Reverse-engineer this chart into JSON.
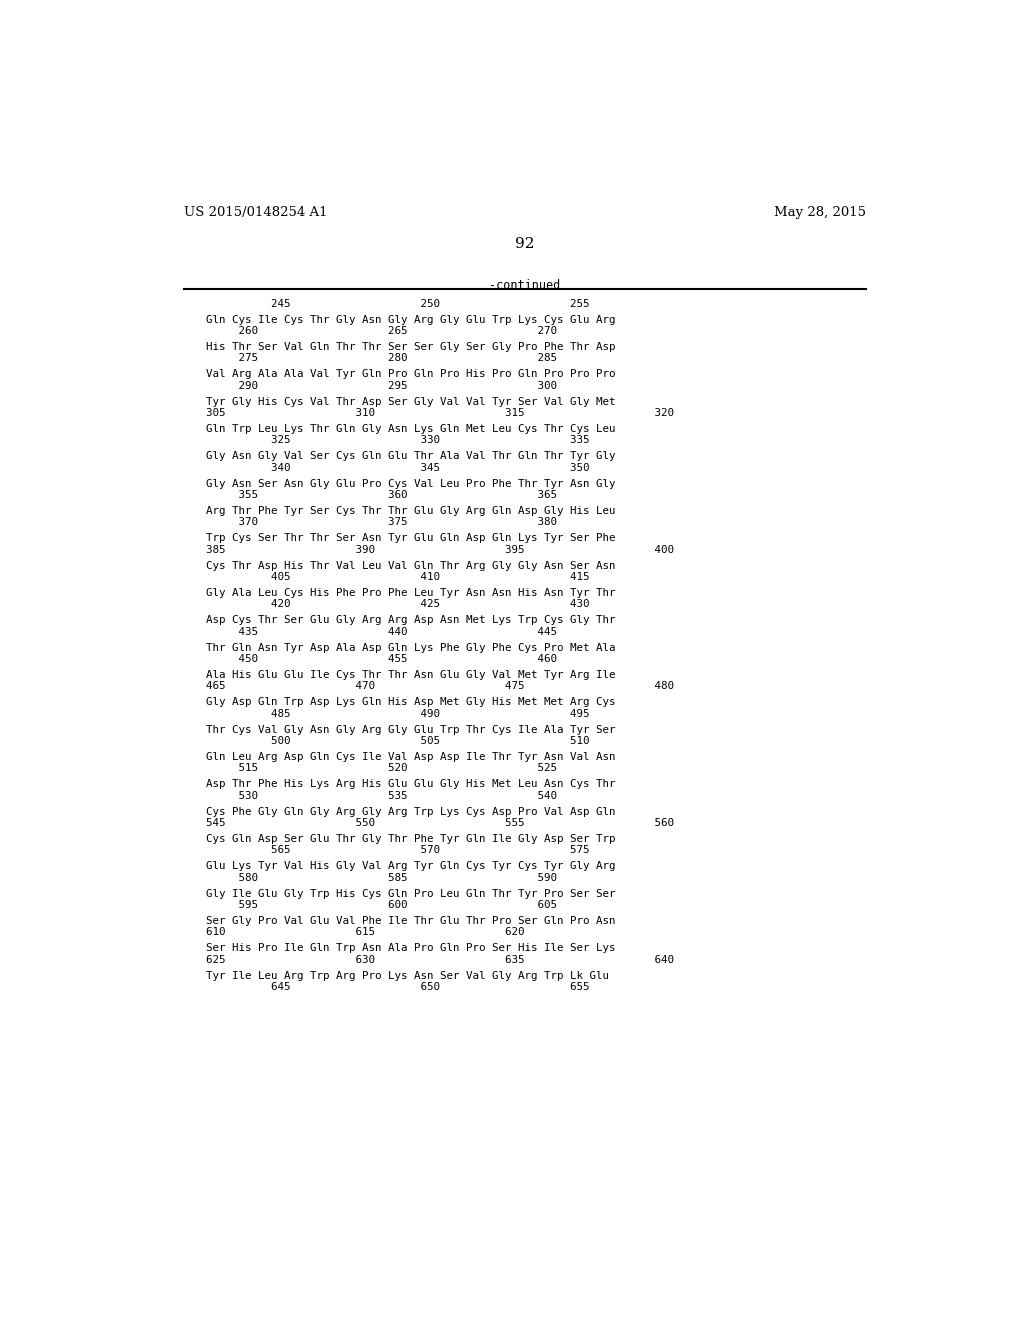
{
  "header_left": "US 2015/0148254 A1",
  "header_right": "May 28, 2015",
  "page_number": "92",
  "continued": "-continued",
  "background_color": "#ffffff",
  "text_color": "#000000",
  "lines": [
    "          245                    250                    255",
    "",
    "Gln Cys Ile Cys Thr Gly Asn Gly Arg Gly Glu Trp Lys Cys Glu Arg",
    "     260                    265                    270",
    "",
    "His Thr Ser Val Gln Thr Thr Ser Ser Gly Ser Gly Pro Phe Thr Asp",
    "     275                    280                    285",
    "",
    "Val Arg Ala Ala Val Tyr Gln Pro Gln Pro His Pro Gln Pro Pro Pro",
    "     290                    295                    300",
    "",
    "Tyr Gly His Cys Val Thr Asp Ser Gly Val Val Tyr Ser Val Gly Met",
    "305                    310                    315                    320",
    "",
    "Gln Trp Leu Lys Thr Gln Gly Asn Lys Gln Met Leu Cys Thr Cys Leu",
    "          325                    330                    335",
    "",
    "Gly Asn Gly Val Ser Cys Gln Glu Thr Ala Val Thr Gln Thr Tyr Gly",
    "          340                    345                    350",
    "",
    "Gly Asn Ser Asn Gly Glu Pro Cys Val Leu Pro Phe Thr Tyr Asn Gly",
    "     355                    360                    365",
    "",
    "Arg Thr Phe Tyr Ser Cys Thr Thr Glu Gly Arg Gln Asp Gly His Leu",
    "     370                    375                    380",
    "",
    "Trp Cys Ser Thr Thr Ser Asn Tyr Glu Gln Asp Gln Lys Tyr Ser Phe",
    "385                    390                    395                    400",
    "",
    "Cys Thr Asp His Thr Val Leu Val Gln Thr Arg Gly Gly Asn Ser Asn",
    "          405                    410                    415",
    "",
    "Gly Ala Leu Cys His Phe Pro Phe Leu Tyr Asn Asn His Asn Tyr Thr",
    "          420                    425                    430",
    "",
    "Asp Cys Thr Ser Glu Gly Arg Arg Asp Asn Met Lys Trp Cys Gly Thr",
    "     435                    440                    445",
    "",
    "Thr Gln Asn Tyr Asp Ala Asp Gln Lys Phe Gly Phe Cys Pro Met Ala",
    "     450                    455                    460",
    "",
    "Ala His Glu Glu Ile Cys Thr Thr Asn Glu Gly Val Met Tyr Arg Ile",
    "465                    470                    475                    480",
    "",
    "Gly Asp Gln Trp Asp Lys Gln His Asp Met Gly His Met Met Arg Cys",
    "          485                    490                    495",
    "",
    "Thr Cys Val Gly Asn Gly Arg Gly Glu Trp Thr Cys Ile Ala Tyr Ser",
    "          500                    505                    510",
    "",
    "Gln Leu Arg Asp Gln Cys Ile Val Asp Asp Ile Thr Tyr Asn Val Asn",
    "     515                    520                    525",
    "",
    "Asp Thr Phe His Lys Arg His Glu Glu Gly His Met Leu Asn Cys Thr",
    "     530                    535                    540",
    "",
    "Cys Phe Gly Gln Gly Arg Gly Arg Trp Lys Cys Asp Pro Val Asp Gln",
    "545                    550                    555                    560",
    "",
    "Cys Gln Asp Ser Glu Thr Gly Thr Phe Tyr Gln Ile Gly Asp Ser Trp",
    "          565                    570                    575",
    "",
    "Glu Lys Tyr Val His Gly Val Arg Tyr Gln Cys Tyr Cys Tyr Gly Arg",
    "     580                    585                    590",
    "",
    "Gly Ile Glu Gly Trp His Cys Gln Pro Leu Gln Thr Tyr Pro Ser Ser",
    "     595                    600                    605",
    "",
    "Ser Gly Pro Val Glu Val Phe Ile Thr Glu Thr Pro Ser Gln Pro Asn",
    "610                    615                    620",
    "",
    "Ser His Pro Ile Gln Trp Asn Ala Pro Gln Pro Ser His Ile Ser Lys",
    "625                    630                    635                    640",
    "",
    "Tyr Ile Leu Arg Trp Arg Pro Lys Asn Ser Val Gly Arg Trp Lk Glu",
    "          645                    650                    655"
  ]
}
